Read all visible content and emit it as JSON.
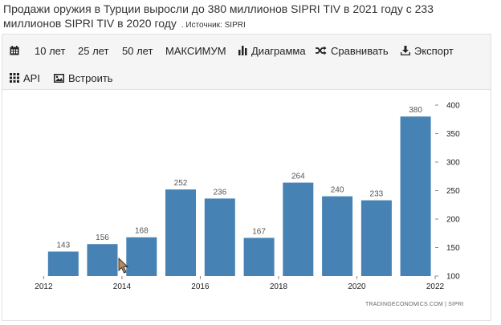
{
  "title": {
    "text": "Продажи оружия в Турции выросли до 380 миллионов SIPRI TIV в 2021 году с 233 миллионов SIPRI TIV в 2020 году",
    "source": ". Источник: SIPRI"
  },
  "toolbar": {
    "items": [
      {
        "label": "",
        "icon": "calendar-icon"
      },
      {
        "label": "10 лет"
      },
      {
        "label": "25 лет"
      },
      {
        "label": "50 лет"
      },
      {
        "label": "МАКСИМУМ"
      },
      {
        "label": "Диаграмма",
        "icon": "bar-chart-icon"
      },
      {
        "label": "Сравнивать",
        "icon": "shuffle-icon"
      },
      {
        "label": "Экспорт",
        "icon": "download-icon"
      },
      {
        "label": "API",
        "icon": "grid-icon"
      },
      {
        "label": "Встроить",
        "icon": "image-icon"
      }
    ]
  },
  "credit": "TRADINGECONOMICS.COM | SIPRI",
  "chart_data": {
    "type": "bar",
    "categories": [
      2012,
      2013,
      2014,
      2015,
      2016,
      2017,
      2018,
      2019,
      2020,
      2021
    ],
    "values": [
      143,
      156,
      168,
      252,
      236,
      167,
      264,
      240,
      233,
      380
    ],
    "x_ticks": [
      "2012",
      "2014",
      "2016",
      "2018",
      "2020",
      "2022"
    ],
    "y_ticks": [
      100,
      150,
      200,
      250,
      300,
      350,
      400
    ],
    "ylim": [
      100,
      400
    ],
    "xlim": [
      2011.5,
      2022
    ],
    "title": "",
    "xlabel": "",
    "ylabel": "",
    "color": "#4682b4",
    "grid": false,
    "y_axis_position": "right"
  }
}
